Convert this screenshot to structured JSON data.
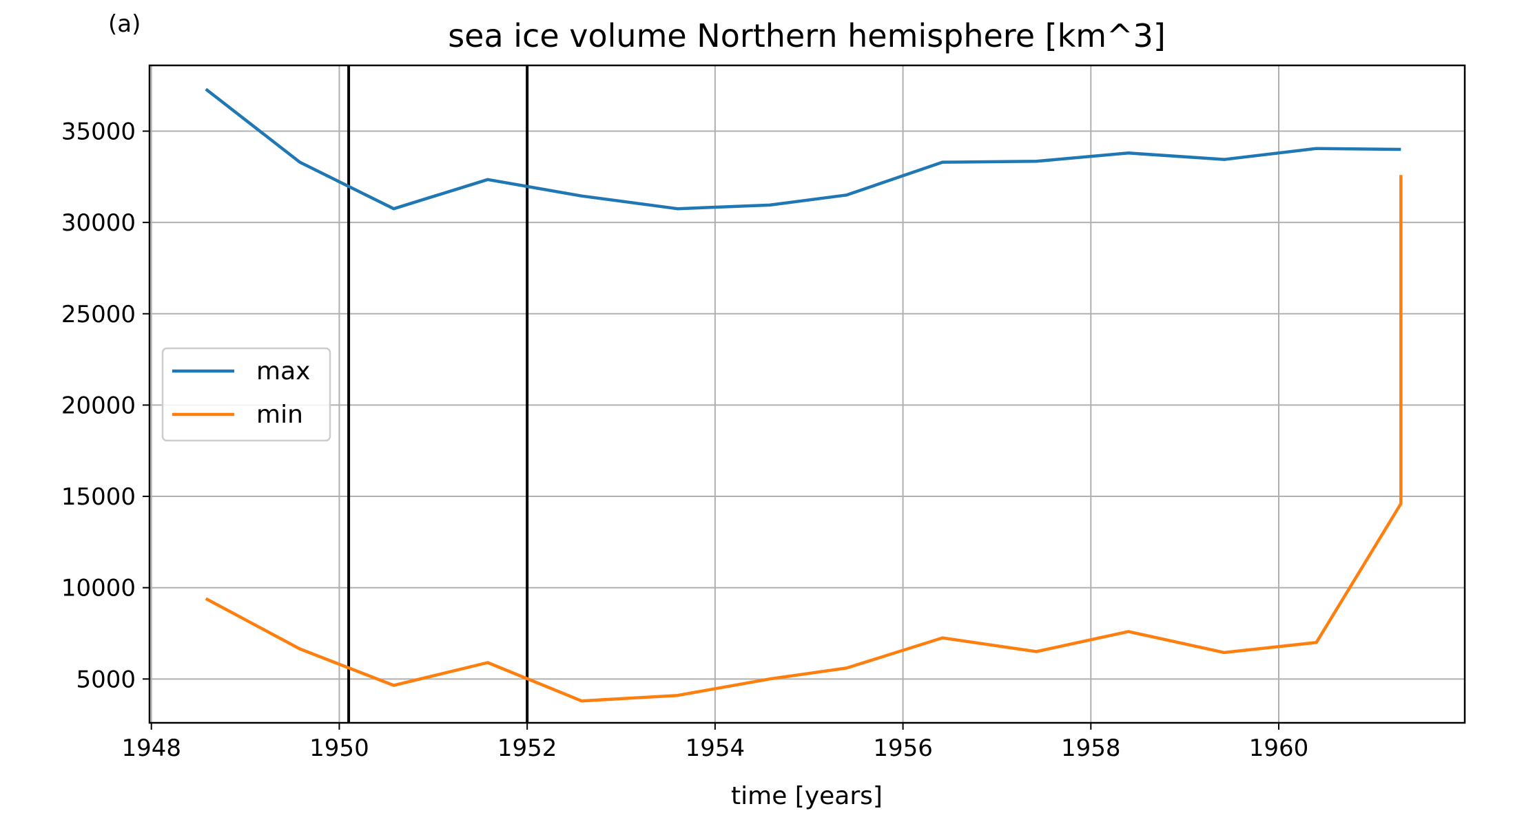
{
  "chart_data": {
    "type": "line",
    "panel_label": "(a)",
    "title": "sea ice volume Northern hemisphere [km^3]",
    "xlabel": "time [years]",
    "ylabel": "",
    "xlim": [
      1947.98,
      1961.98
    ],
    "ylim": [
      2600,
      38600
    ],
    "xticks": [
      1948,
      1950,
      1952,
      1954,
      1956,
      1958,
      1960
    ],
    "xtick_labels": [
      "1948",
      "1950",
      "1952",
      "1954",
      "1956",
      "1958",
      "1960"
    ],
    "yticks": [
      5000,
      10000,
      15000,
      20000,
      25000,
      30000,
      35000
    ],
    "ytick_labels": [
      "5000",
      "10000",
      "15000",
      "20000",
      "25000",
      "30000",
      "35000"
    ],
    "grid": true,
    "legend_position": "center-left",
    "vertical_lines": [
      {
        "x": 1950.1,
        "color": "#000000"
      },
      {
        "x": 1952.0,
        "color": "#000000"
      }
    ],
    "series": [
      {
        "name": "max",
        "color": "#1f77b4",
        "x": [
          1948.58,
          1949.58,
          1950.58,
          1951.58,
          1952.58,
          1953.6,
          1954.58,
          1955.4,
          1956.42,
          1957.42,
          1958.4,
          1959.42,
          1960.4,
          1961.3
        ],
        "values": [
          37300,
          33300,
          30750,
          32350,
          31450,
          30750,
          30950,
          31500,
          33300,
          33350,
          33800,
          33450,
          34050,
          34000
        ]
      },
      {
        "name": "min",
        "color": "#ff7f0e",
        "x": [
          1948.58,
          1949.58,
          1950.58,
          1951.58,
          1952.58,
          1953.6,
          1954.58,
          1955.4,
          1956.42,
          1957.42,
          1958.4,
          1959.42,
          1960.4,
          1961.3,
          1961.3
        ],
        "values": [
          9400,
          6650,
          4650,
          5900,
          3800,
          4100,
          5000,
          5600,
          7250,
          6500,
          7600,
          6450,
          7000,
          14600,
          32600
        ]
      }
    ]
  }
}
